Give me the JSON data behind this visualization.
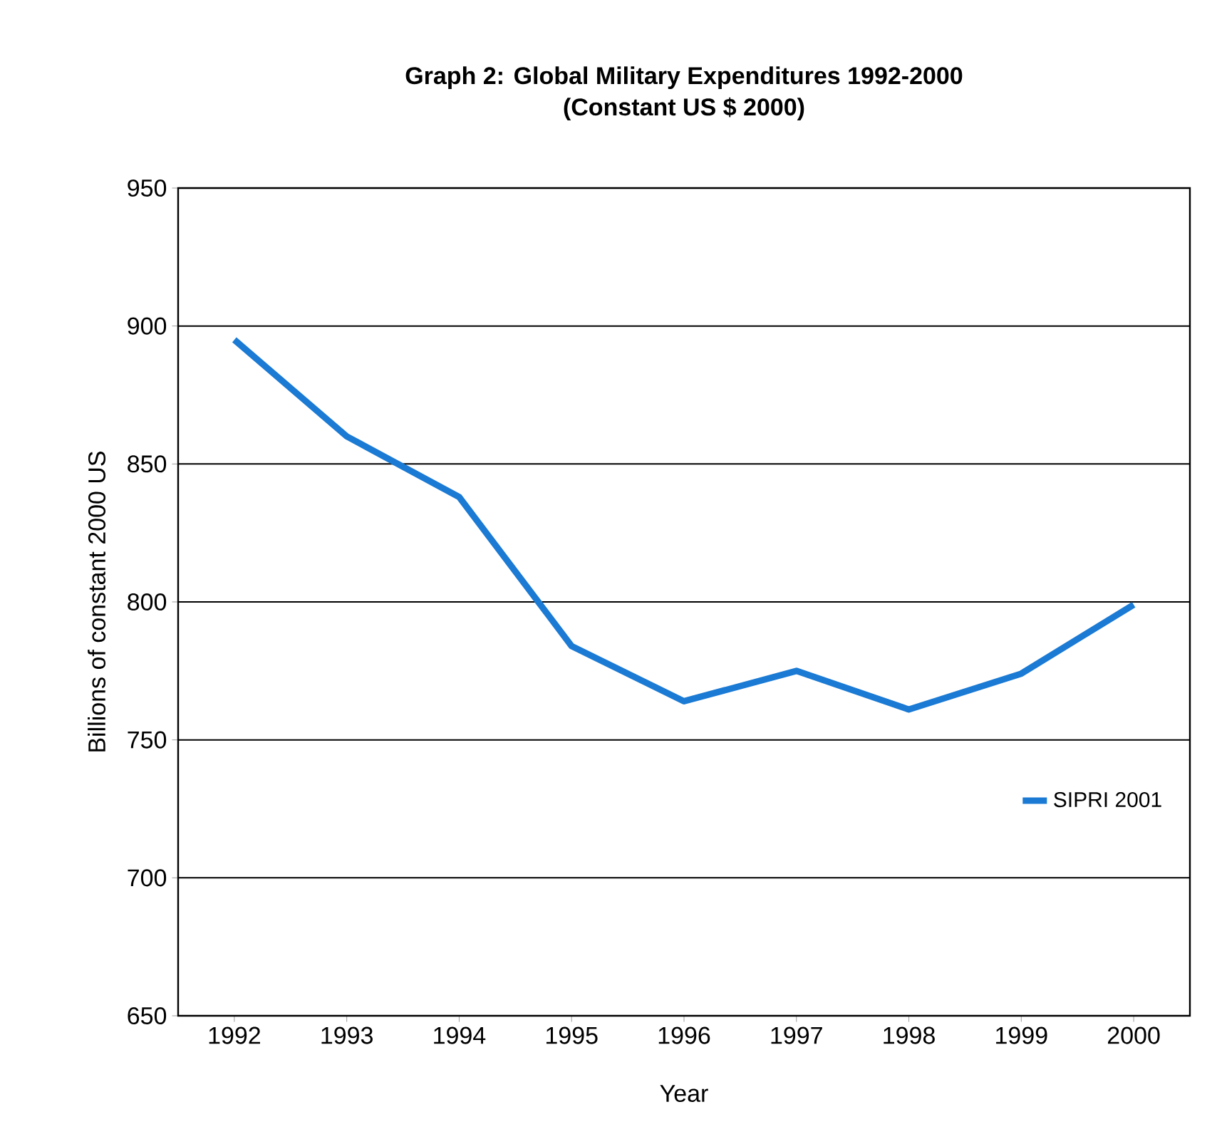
{
  "chart_data": {
    "type": "line",
    "title": "Graph 2: Global Military Expenditures 1992-2000",
    "subtitle": "(Constant US $ 2000)",
    "xlabel": "Year",
    "ylabel": "Billions of constant 2000 US",
    "categories": [
      "1992",
      "1993",
      "1994",
      "1995",
      "1996",
      "1997",
      "1998",
      "1999",
      "2000"
    ],
    "series": [
      {
        "name": "SIPRI 2001",
        "color": "#1a7ad4",
        "values": [
          895,
          860,
          838,
          784,
          764,
          775,
          761,
          774,
          799
        ]
      }
    ],
    "ylim": [
      650,
      950
    ],
    "yticks": [
      650,
      700,
      750,
      800,
      850,
      900,
      950
    ],
    "grid": "y",
    "legend": "right",
    "marker": "none",
    "line_style": "solid"
  }
}
